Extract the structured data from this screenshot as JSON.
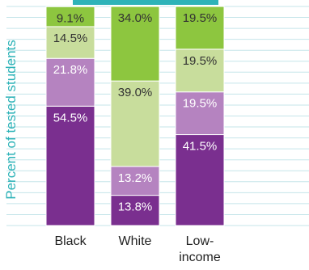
{
  "chart_data": {
    "type": "bar",
    "stacked": true,
    "title": "",
    "xlabel": "",
    "ylabel": "Percent of tested students",
    "ylim": [
      0,
      100
    ],
    "grid": true,
    "categories": [
      "Black",
      "White",
      "Low-\nincome"
    ],
    "series": [
      {
        "color": "#7a2f8f",
        "values": [
          54.5,
          13.8,
          41.5
        ],
        "labels": [
          "54.5%",
          "13.8%",
          "41.5%"
        ]
      },
      {
        "color": "#b583c0",
        "values": [
          21.8,
          13.2,
          19.5
        ],
        "labels": [
          "21.8%",
          "13.2%",
          "19.5%"
        ]
      },
      {
        "color": "#c8dd9c",
        "values": [
          14.5,
          39.0,
          19.5
        ],
        "labels": [
          "14.5%",
          "39.0%",
          "19.5%"
        ]
      },
      {
        "color": "#8dc63f",
        "values": [
          9.1,
          34.0,
          19.5
        ],
        "labels": [
          "9.1%",
          "34.0%",
          "19.5%"
        ]
      }
    ],
    "colors": {
      "grid": "#c5e5ea",
      "axis_label": "#2eb3b8",
      "tick_label": "#222222",
      "bar_label_light": "#ffffff",
      "bar_label_dark": "#333333"
    }
  }
}
